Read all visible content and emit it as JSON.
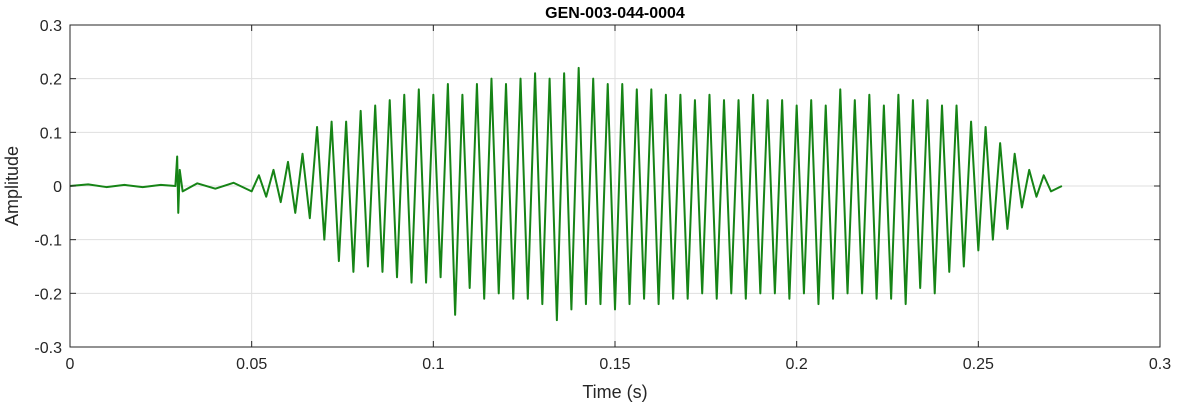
{
  "chart_data": {
    "type": "line",
    "title": "GEN-003-044-0004",
    "xlabel": "Time (s)",
    "ylabel": "Amplitude",
    "xlim": [
      0,
      0.3
    ],
    "ylim": [
      -0.3,
      0.3
    ],
    "grid": true,
    "x_ticks": [
      0,
      0.05,
      0.1,
      0.15,
      0.2,
      0.25,
      0.3
    ],
    "x_tick_labels": [
      "0",
      "0.05",
      "0.1",
      "0.15",
      "0.2",
      "0.25",
      "0.3"
    ],
    "y_ticks": [
      0.3,
      0.2,
      0.1,
      0,
      -0.1,
      -0.2,
      -0.3
    ],
    "y_tick_labels": [
      "0.3",
      "0.2",
      "0.1",
      "0",
      "-0.1",
      "-0.2",
      "-0.3"
    ],
    "line_color": "#168416",
    "series": [
      {
        "x": [
          0.0,
          0.005,
          0.01,
          0.015,
          0.02,
          0.025,
          0.029,
          0.0295,
          0.0298,
          0.0302,
          0.031,
          0.035,
          0.04,
          0.045,
          0.05,
          0.052,
          0.054,
          0.056,
          0.058,
          0.06,
          0.062,
          0.064,
          0.066,
          0.068,
          0.07,
          0.072,
          0.074,
          0.076,
          0.078,
          0.08,
          0.082,
          0.084,
          0.086,
          0.088,
          0.09,
          0.092,
          0.094,
          0.096,
          0.098,
          0.1,
          0.102,
          0.104,
          0.106,
          0.108,
          0.11,
          0.112,
          0.114,
          0.116,
          0.118,
          0.12,
          0.122,
          0.124,
          0.126,
          0.128,
          0.13,
          0.132,
          0.134,
          0.136,
          0.138,
          0.14,
          0.142,
          0.144,
          0.146,
          0.148,
          0.15,
          0.152,
          0.154,
          0.156,
          0.158,
          0.16,
          0.162,
          0.164,
          0.166,
          0.168,
          0.17,
          0.172,
          0.174,
          0.176,
          0.178,
          0.18,
          0.182,
          0.184,
          0.186,
          0.188,
          0.19,
          0.192,
          0.194,
          0.196,
          0.198,
          0.2,
          0.202,
          0.204,
          0.206,
          0.208,
          0.21,
          0.212,
          0.214,
          0.216,
          0.218,
          0.22,
          0.222,
          0.224,
          0.226,
          0.228,
          0.23,
          0.232,
          0.234,
          0.236,
          0.238,
          0.24,
          0.242,
          0.244,
          0.246,
          0.248,
          0.25,
          0.252,
          0.254,
          0.256,
          0.258,
          0.26,
          0.262,
          0.264,
          0.266,
          0.268,
          0.27,
          0.273
        ],
        "y": [
          0.0,
          0.003,
          -0.002,
          0.002,
          -0.002,
          0.002,
          0.0,
          0.055,
          -0.05,
          0.03,
          -0.01,
          0.005,
          -0.005,
          0.006,
          -0.01,
          0.02,
          -0.02,
          0.03,
          -0.03,
          0.045,
          -0.05,
          0.06,
          -0.06,
          0.11,
          -0.1,
          0.12,
          -0.14,
          0.12,
          -0.16,
          0.14,
          -0.15,
          0.15,
          -0.16,
          0.16,
          -0.17,
          0.17,
          -0.18,
          0.18,
          -0.18,
          0.17,
          -0.17,
          0.19,
          -0.24,
          0.17,
          -0.19,
          0.19,
          -0.21,
          0.2,
          -0.2,
          0.19,
          -0.21,
          0.2,
          -0.21,
          0.21,
          -0.22,
          0.2,
          -0.25,
          0.21,
          -0.23,
          0.22,
          -0.22,
          0.2,
          -0.22,
          0.19,
          -0.23,
          0.19,
          -0.22,
          0.18,
          -0.21,
          0.18,
          -0.22,
          0.17,
          -0.21,
          0.17,
          -0.21,
          0.16,
          -0.2,
          0.17,
          -0.21,
          0.16,
          -0.2,
          0.16,
          -0.21,
          0.17,
          -0.2,
          0.16,
          -0.2,
          0.16,
          -0.21,
          0.15,
          -0.2,
          0.16,
          -0.22,
          0.15,
          -0.21,
          0.18,
          -0.2,
          0.16,
          -0.2,
          0.17,
          -0.21,
          0.15,
          -0.21,
          0.17,
          -0.22,
          0.16,
          -0.19,
          0.16,
          -0.2,
          0.15,
          -0.16,
          0.15,
          -0.15,
          0.12,
          -0.12,
          0.11,
          -0.1,
          0.08,
          -0.08,
          0.06,
          -0.04,
          0.03,
          -0.02,
          0.02,
          -0.01,
          0.0
        ]
      }
    ]
  }
}
